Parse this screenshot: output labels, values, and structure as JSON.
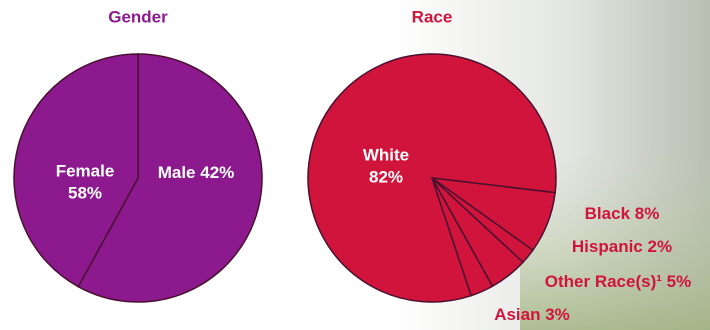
{
  "chart_data": [
    {
      "type": "pie",
      "title": "Gender",
      "color": "#8c1a8e",
      "categories": [
        "Female",
        "Male"
      ],
      "values": [
        58,
        42
      ],
      "value_labels": [
        "58%",
        "42%"
      ]
    },
    {
      "type": "pie",
      "title": "Race",
      "color": "#d0143c",
      "categories": [
        "White",
        "Black",
        "Hispanic",
        "Other Race(s)¹",
        "Asian"
      ],
      "values": [
        82,
        8,
        2,
        5,
        3
      ],
      "value_labels": [
        "82%",
        "8%",
        "2%",
        "5%",
        "3%"
      ]
    }
  ]
}
